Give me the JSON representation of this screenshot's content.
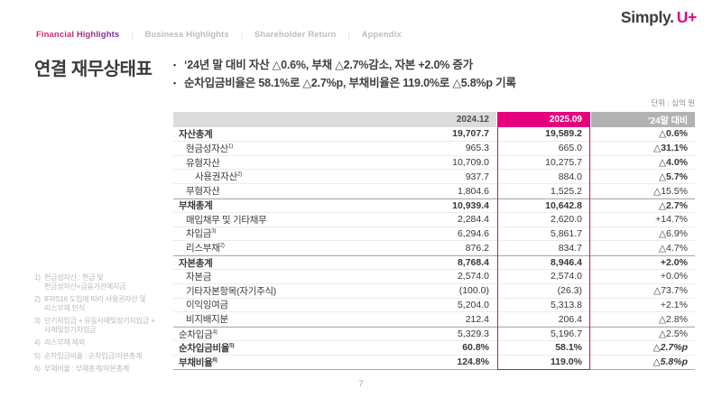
{
  "nav": {
    "separator": "|",
    "items": [
      {
        "label": "Financial Highlights",
        "active": true
      },
      {
        "label": "Business Highlights",
        "active": false
      },
      {
        "label": "Shareholder Return",
        "active": false
      },
      {
        "label": "Appendix",
        "active": false
      }
    ]
  },
  "logo": {
    "simply": "Simply.",
    "uplus": "U+"
  },
  "page": {
    "title": "연결 재무상태표",
    "unit_label": "단위 : 십억 원",
    "page_number": "7"
  },
  "bullets": [
    "‘24년 말 대비 자산 △0.6%, 부채 △2.7%감소, 자본 +2.0% 증가",
    "순차입금비율은 58.1%로 △2.7%p, 부채비율은 119.0%로 △5.8%p 기록"
  ],
  "table": {
    "columns": [
      "",
      "2024.12",
      "2025.09",
      "’24말 대비"
    ],
    "rows": [
      {
        "label": "자산총계",
        "sup": "",
        "indent": 0,
        "bold": true,
        "v2024": "19,707.7",
        "v2025": "19,589.2",
        "delta": "△0.6%",
        "delta_bold": true,
        "delta_italic": false,
        "section_start": false
      },
      {
        "label": "현금성자산",
        "sup": "1)",
        "indent": 1,
        "bold": false,
        "v2024": "965.3",
        "v2025": "665.0",
        "delta": "△31.1%",
        "delta_bold": true,
        "delta_italic": false,
        "section_start": false
      },
      {
        "label": "유형자산",
        "sup": "",
        "indent": 1,
        "bold": false,
        "v2024": "10,709.0",
        "v2025": "10,275.7",
        "delta": "△4.0%",
        "delta_bold": true,
        "delta_italic": false,
        "section_start": false
      },
      {
        "label": "사용권자산",
        "sup": "2)",
        "indent": 2,
        "bold": false,
        "v2024": "937.7",
        "v2025": "884.0",
        "delta": "△5.7%",
        "delta_bold": true,
        "delta_italic": false,
        "section_start": false
      },
      {
        "label": "무형자산",
        "sup": "",
        "indent": 1,
        "bold": false,
        "v2024": "1,804.6",
        "v2025": "1,525.2",
        "delta": "△15.5%",
        "delta_bold": false,
        "delta_italic": false,
        "section_start": false
      },
      {
        "label": "부채총계",
        "sup": "",
        "indent": 0,
        "bold": true,
        "v2024": "10,939.4",
        "v2025": "10,642.8",
        "delta": "△2.7%",
        "delta_bold": true,
        "delta_italic": false,
        "section_start": true
      },
      {
        "label": "매입채무 및 기타채무",
        "sup": "",
        "indent": 1,
        "bold": false,
        "v2024": "2,284.4",
        "v2025": "2,620.0",
        "delta": "+14.7%",
        "delta_bold": false,
        "delta_italic": false,
        "section_start": false
      },
      {
        "label": "차입금",
        "sup": "3)",
        "indent": 1,
        "bold": false,
        "v2024": "6,294.6",
        "v2025": "5,861.7",
        "delta": "△6.9%",
        "delta_bold": false,
        "delta_italic": false,
        "section_start": false
      },
      {
        "label": "리스부채",
        "sup": "2)",
        "indent": 1,
        "bold": false,
        "v2024": "876.2",
        "v2025": "834.7",
        "delta": "△4.7%",
        "delta_bold": false,
        "delta_italic": false,
        "section_start": false
      },
      {
        "label": "자본총계",
        "sup": "",
        "indent": 0,
        "bold": true,
        "v2024": "8,768.4",
        "v2025": "8,946.4",
        "delta": "+2.0%",
        "delta_bold": true,
        "delta_italic": false,
        "section_start": true
      },
      {
        "label": "자본금",
        "sup": "",
        "indent": 1,
        "bold": false,
        "v2024": "2,574.0",
        "v2025": "2,574.0",
        "delta": "+0.0%",
        "delta_bold": false,
        "delta_italic": false,
        "section_start": false
      },
      {
        "label": "기타자본항목(자기주식)",
        "sup": "",
        "indent": 1,
        "bold": false,
        "v2024": "(100.0)",
        "v2025": "(26.3)",
        "delta": "△73.7%",
        "delta_bold": false,
        "delta_italic": false,
        "section_start": false
      },
      {
        "label": "이익잉여금",
        "sup": "",
        "indent": 1,
        "bold": false,
        "v2024": "5,204.0",
        "v2025": "5,313.8",
        "delta": "+2.1%",
        "delta_bold": false,
        "delta_italic": false,
        "section_start": false
      },
      {
        "label": "비지배지분",
        "sup": "",
        "indent": 1,
        "bold": false,
        "v2024": "212.4",
        "v2025": "206.4",
        "delta": "△2.8%",
        "delta_bold": false,
        "delta_italic": false,
        "section_start": false
      },
      {
        "label": "순차입금",
        "sup": "4)",
        "indent": 0,
        "bold": false,
        "v2024": "5,329.3",
        "v2025": "5,196.7",
        "delta": "△2.5%",
        "delta_bold": false,
        "delta_italic": false,
        "section_start": true
      },
      {
        "label": "순차입금비율",
        "sup": "5)",
        "indent": 0,
        "bold": true,
        "v2024": "60.8%",
        "v2025": "58.1%",
        "delta": "△2.7%p",
        "delta_bold": true,
        "delta_italic": true,
        "section_start": false
      },
      {
        "label": "부채비율",
        "sup": "6)",
        "indent": 0,
        "bold": true,
        "v2024": "124.8%",
        "v2025": "119.0%",
        "delta": "△5.8%p",
        "delta_bold": true,
        "delta_italic": true,
        "section_start": false
      }
    ]
  },
  "footnotes": [
    {
      "num": "1)",
      "text": "현금성자산 : 현금 및\n현금성자산+금융기관예치금"
    },
    {
      "num": "2)",
      "text": "IFRS16 도입에 따라 사용권자산 및\n리스부채 인식"
    },
    {
      "num": "3)",
      "text": "단기차입금 + 유동사채및장기차입금 +\n사채및장기차입금"
    },
    {
      "num": "4)",
      "text": "리스부채 제외"
    },
    {
      "num": "5)",
      "text": "순차입금비율 : 순차입금/자본총계"
    },
    {
      "num": "6)",
      "text": "부채비율 : 부채총계/자본총계"
    }
  ],
  "colors": {
    "accent_magenta": "#e6007e",
    "header_gray_light": "#dcdcdc",
    "header_gray_dark": "#b2b2b2",
    "nav_inactive": "#bdbdbd",
    "text_dark": "#3c3c3c"
  }
}
